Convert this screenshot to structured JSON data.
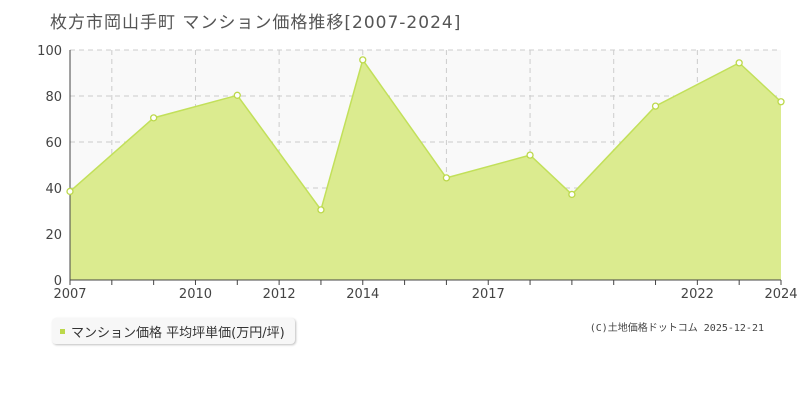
{
  "title": "枚方市岡山手町 マンション価格推移[2007-2024]",
  "legend": {
    "label": "マンション価格 平均坪単価(万円/坪)"
  },
  "credit": "(C)土地価格ドットコム 2025-12-21",
  "colors": {
    "area_fill": "#dbeb8f",
    "line": "#c2e05a",
    "marker_fill": "#ffffff",
    "marker_stroke": "#bcd84a",
    "grid": "#cccccc",
    "plot_bg": "#f9f9f9"
  },
  "chart_data": {
    "type": "area",
    "title": "枚方市岡山手町 マンション価格推移[2007-2024]",
    "xlabel": "",
    "ylabel": "",
    "xlim": [
      2007,
      2024
    ],
    "ylim": [
      0,
      100
    ],
    "x_tick_labels": [
      "2007",
      "2010",
      "2012",
      "2014",
      "2017",
      "2022",
      "2024"
    ],
    "y_tick_labels": [
      "0",
      "20",
      "40",
      "60",
      "80",
      "100"
    ],
    "grid": true,
    "legend_position": "bottom-left",
    "series": [
      {
        "name": "マンション価格 平均坪単価(万円/坪)",
        "x": [
          2007,
          2009,
          2011,
          2013,
          2014,
          2016,
          2018,
          2019,
          2021,
          2023,
          2024
        ],
        "values": [
          38.5,
          70.5,
          80.3,
          30.5,
          95.7,
          44.4,
          54.3,
          37.2,
          75.6,
          94.4,
          77.5
        ]
      }
    ]
  }
}
